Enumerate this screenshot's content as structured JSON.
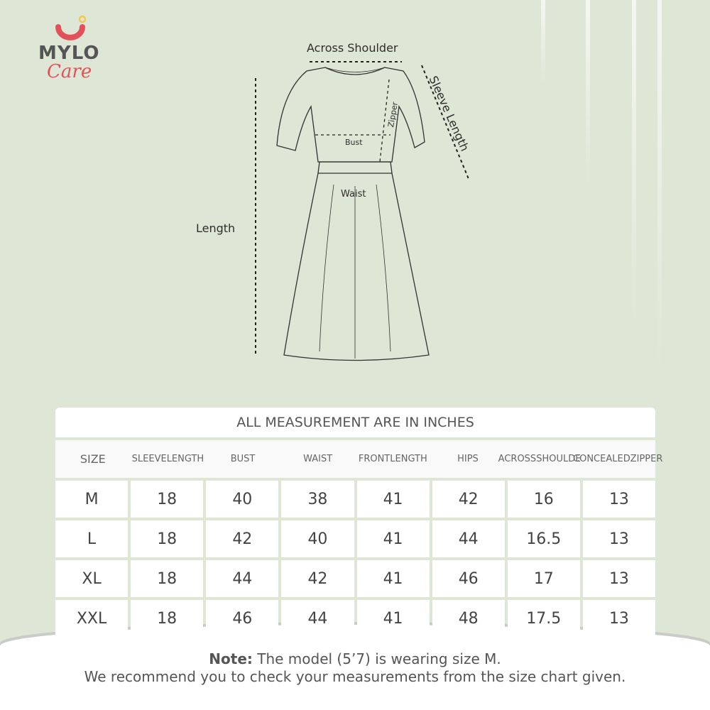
{
  "brand": {
    "name": "MYLO",
    "sub": "Care",
    "colors": {
      "primary": "#e2515a",
      "dot": "#f2c94c",
      "text": "#555555"
    }
  },
  "diagram": {
    "across_shoulder": "Across Shoulder",
    "sleeve_length": "Sleeve Length",
    "length": "Length",
    "bust": "Bust",
    "waist": "Waist",
    "zipper": "Zipper"
  },
  "table": {
    "title": "ALL MEASUREMENT ARE IN INCHES",
    "headers": [
      [
        "SIZE"
      ],
      [
        "SLEEVE",
        "LENGTH"
      ],
      [
        "BUST"
      ],
      [
        "WAIST"
      ],
      [
        "FRONT",
        "LENGTH"
      ],
      [
        "HIPS"
      ],
      [
        "ACROSS",
        "SHOULDER"
      ],
      [
        "CONCEALED",
        "ZIPPER"
      ]
    ],
    "rows": [
      [
        "M",
        "18",
        "40",
        "38",
        "41",
        "42",
        "16",
        "13"
      ],
      [
        "L",
        "18",
        "42",
        "40",
        "41",
        "44",
        "16.5",
        "13"
      ],
      [
        "XL",
        "18",
        "44",
        "42",
        "41",
        "46",
        "17",
        "13"
      ],
      [
        "XXL",
        "18",
        "46",
        "44",
        "41",
        "48",
        "17.5",
        "13"
      ]
    ]
  },
  "note": {
    "bold": "Note:",
    "line1": " The model (5’7) is wearing size M.",
    "line2": "We recommend you to check your measurements from the size chart given."
  }
}
